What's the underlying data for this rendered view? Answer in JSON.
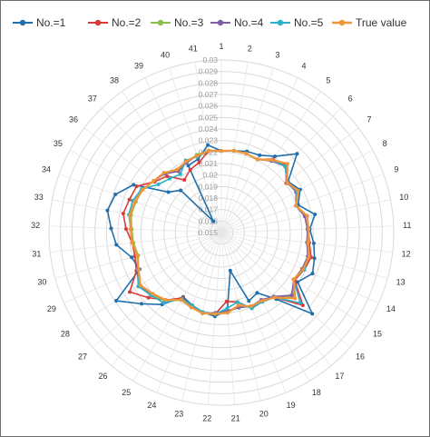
{
  "chart_data": {
    "type": "radar",
    "title": "",
    "legend_position": "top",
    "categories": [
      "1",
      "2",
      "3",
      "4",
      "5",
      "6",
      "7",
      "8",
      "9",
      "10",
      "11",
      "12",
      "13",
      "14",
      "15",
      "16",
      "17",
      "18",
      "19",
      "20",
      "21",
      "22",
      "23",
      "24",
      "25",
      "26",
      "27",
      "28",
      "29",
      "30",
      "31",
      "32",
      "33",
      "34",
      "35",
      "36",
      "37",
      "38",
      "39",
      "40",
      "41"
    ],
    "radial_ticks": [
      "0.015",
      "0.016",
      "0.017",
      "0.018",
      "0.019",
      "0.02",
      "0.021",
      "0.022",
      "0.023",
      "0.024",
      "0.025",
      "0.026",
      "0.027",
      "0.028",
      "0.029",
      "0.03"
    ],
    "rmin": 0.015,
    "rmax": 0.03,
    "series": [
      {
        "name": "No.=1",
        "color": "#1f6fad",
        "values": [
          0.0221,
          0.0222,
          0.0224,
          0.0225,
          0.0231,
          0.0245,
          0.0223,
          0.0228,
          0.0221,
          0.0233,
          0.0227,
          0.0231,
          0.0234,
          0.0237,
          0.0229,
          0.0256,
          0.0225,
          0.0211,
          0.0214,
          0.0184,
          0.0218,
          0.0223,
          0.0221,
          0.0218,
          0.0215,
          0.0231,
          0.0243,
          0.0259,
          0.0228,
          0.0231,
          0.0242,
          0.0246,
          0.0251,
          0.0248,
          0.0237,
          0.0208,
          0.0201,
          0.0162,
          0.0215,
          0.0217,
          0.0227
        ]
      },
      {
        "name": "No.=2",
        "color": "#d93b36",
        "values": [
          0.0221,
          0.0222,
          0.0222,
          0.0221,
          0.0228,
          0.0231,
          0.0221,
          0.0226,
          0.0219,
          0.0226,
          0.0226,
          0.0227,
          0.0231,
          0.0229,
          0.0226,
          0.0245,
          0.0223,
          0.0218,
          0.0221,
          0.0212,
          0.021,
          0.0221,
          0.0222,
          0.0219,
          0.0216,
          0.0226,
          0.0235,
          0.0245,
          0.0231,
          0.0228,
          0.0228,
          0.0233,
          0.0237,
          0.0235,
          0.0234,
          0.0223,
          0.0218,
          0.0206,
          0.0211,
          0.0214,
          0.0222
        ]
      },
      {
        "name": "No.=3",
        "color": "#8cbf4f",
        "values": [
          0.0221,
          0.0222,
          0.0222,
          0.0221,
          0.0227,
          0.023,
          0.0222,
          0.0224,
          0.0219,
          0.0224,
          0.0225,
          0.0225,
          0.0228,
          0.0227,
          0.0225,
          0.0234,
          0.0222,
          0.0219,
          0.0219,
          0.0217,
          0.0219,
          0.022,
          0.0222,
          0.022,
          0.0218,
          0.0227,
          0.0231,
          0.0235,
          0.0229,
          0.0225,
          0.0227,
          0.0228,
          0.023,
          0.0229,
          0.0228,
          0.0224,
          0.0222,
          0.0216,
          0.0218,
          0.0221,
          0.0222
        ]
      },
      {
        "name": "No.=4",
        "color": "#7e5fa6",
        "values": [
          0.0221,
          0.0222,
          0.0222,
          0.0221,
          0.0226,
          0.023,
          0.0222,
          0.0224,
          0.0219,
          0.0224,
          0.0225,
          0.0225,
          0.0228,
          0.0227,
          0.0225,
          0.0232,
          0.0222,
          0.0218,
          0.0219,
          0.0217,
          0.0218,
          0.022,
          0.0222,
          0.022,
          0.0218,
          0.0226,
          0.023,
          0.0236,
          0.023,
          0.0226,
          0.0228,
          0.0229,
          0.0231,
          0.023,
          0.0228,
          0.0224,
          0.0221,
          0.0215,
          0.0218,
          0.022,
          0.0222
        ]
      },
      {
        "name": "No.=5",
        "color": "#2ab0c8",
        "values": [
          0.0221,
          0.0222,
          0.0222,
          0.0221,
          0.0227,
          0.023,
          0.0222,
          0.0225,
          0.0219,
          0.0226,
          0.0226,
          0.0226,
          0.0229,
          0.0229,
          0.0225,
          0.0242,
          0.0223,
          0.022,
          0.0221,
          0.0212,
          0.0216,
          0.0221,
          0.0221,
          0.0218,
          0.0217,
          0.0229,
          0.0232,
          0.0236,
          0.0229,
          0.0226,
          0.0228,
          0.0229,
          0.0232,
          0.0232,
          0.0229,
          0.0219,
          0.0215,
          0.0212,
          0.022,
          0.0219,
          0.0222
        ]
      },
      {
        "name": "True value",
        "color": "#f0953a",
        "values": [
          0.0221,
          0.0222,
          0.0222,
          0.0221,
          0.0227,
          0.0233,
          0.0222,
          0.0226,
          0.0219,
          0.0226,
          0.0226,
          0.0226,
          0.0229,
          0.0228,
          0.0225,
          0.0236,
          0.0223,
          0.0219,
          0.0219,
          0.0215,
          0.022,
          0.0221,
          0.0222,
          0.022,
          0.0218,
          0.0226,
          0.023,
          0.0234,
          0.0229,
          0.0226,
          0.0228,
          0.0229,
          0.0231,
          0.023,
          0.0228,
          0.0224,
          0.0222,
          0.0217,
          0.0219,
          0.022,
          0.0222
        ]
      }
    ]
  }
}
